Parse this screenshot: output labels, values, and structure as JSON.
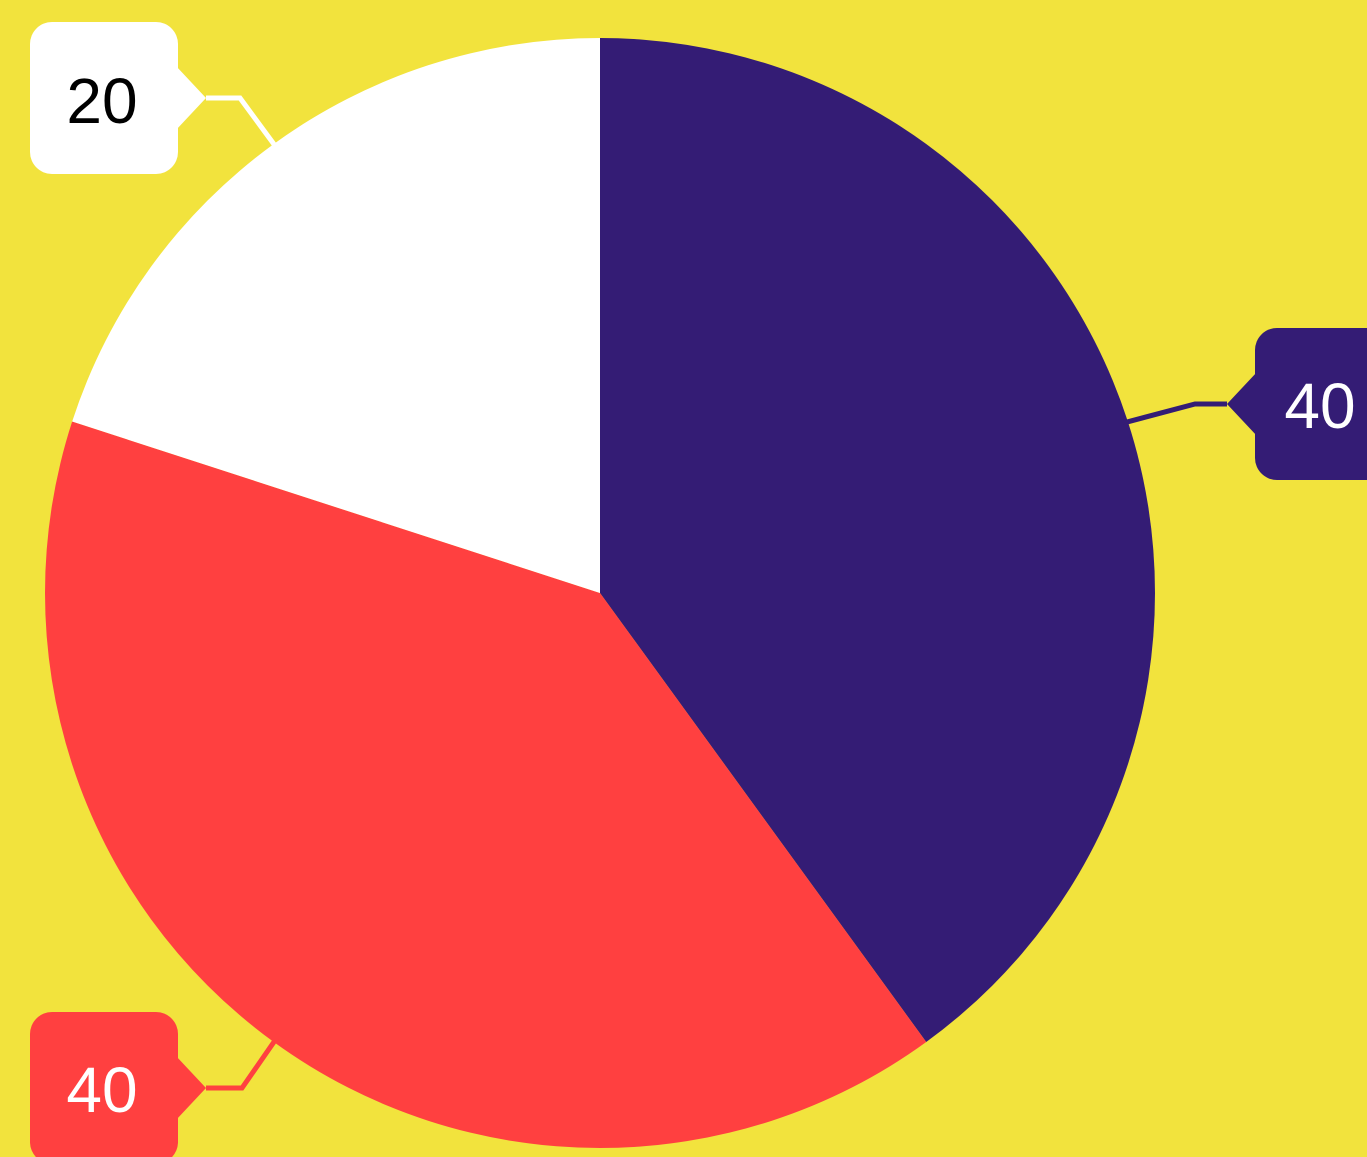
{
  "colors": {
    "background": "#F2E33D",
    "connector_dark": "#341C75",
    "connector_light": "#FFFFFF",
    "connector_red": "#FF4040"
  },
  "chart_data": {
    "type": "pie",
    "title": "",
    "start_angle_deg": 0,
    "direction": "clockwise",
    "legend": "none",
    "slices": [
      {
        "value": 40,
        "label": "40",
        "color": "#341C75",
        "text_color": "#FFFFFF"
      },
      {
        "value": 40,
        "label": "40",
        "color": "#FF4040",
        "text_color": "#FFFFFF"
      },
      {
        "value": 20,
        "label": "20",
        "color": "#FFFFFF",
        "text_color": "#000000"
      }
    ]
  }
}
